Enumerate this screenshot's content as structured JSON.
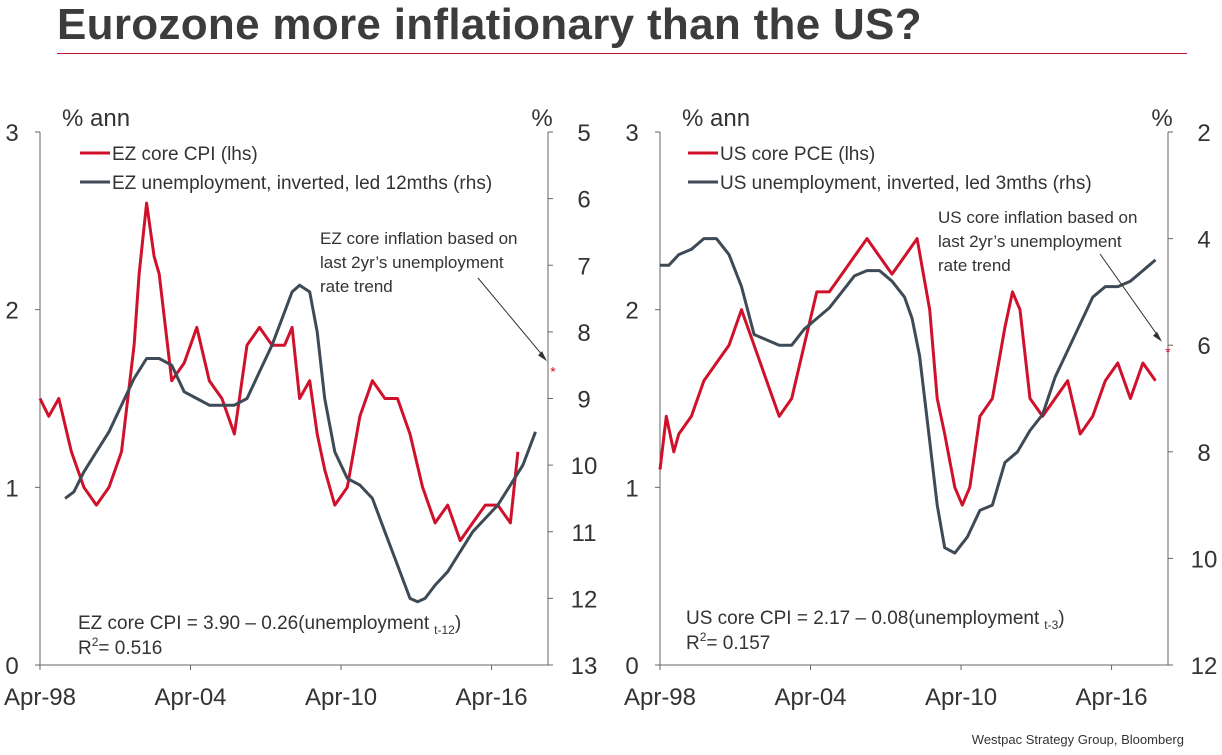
{
  "title": "Eurozone more inflationary than the US?",
  "source": "Westpac Strategy Group, Bloomberg",
  "colors": {
    "red": "#d0112b",
    "slate": "#3e4a55",
    "axis": "#666666",
    "title_rule": "#c8102e"
  },
  "chart_data": [
    {
      "type": "line",
      "ylabel_left": "% ann",
      "ylabel_right": "%",
      "xlim": [
        1998.25,
        2018.5
      ],
      "ylim_left": [
        0,
        3
      ],
      "ylim_right_inverted": [
        5,
        13
      ],
      "yticks_left": [
        0,
        1,
        2,
        3
      ],
      "yticks_right": [
        5,
        6,
        7,
        8,
        9,
        10,
        11,
        12,
        13
      ],
      "xticks": [
        {
          "x": 1998.25,
          "label": "Apr-98"
        },
        {
          "x": 2004.25,
          "label": "Apr-04"
        },
        {
          "x": 2010.25,
          "label": "Apr-10"
        },
        {
          "x": 2016.25,
          "label": "Apr-16"
        }
      ],
      "series": [
        {
          "name": "EZ core CPI (lhs)",
          "axis": "left",
          "color": "red",
          "x": [
            1998.25,
            1998.6,
            1999.0,
            1999.5,
            2000.0,
            2000.5,
            2001.0,
            2001.5,
            2002.0,
            2002.2,
            2002.5,
            2002.8,
            2003.0,
            2003.5,
            2004.0,
            2004.5,
            2005.0,
            2005.5,
            2006.0,
            2006.5,
            2007.0,
            2007.5,
            2008.0,
            2008.3,
            2008.6,
            2009.0,
            2009.3,
            2009.6,
            2010.0,
            2010.5,
            2011.0,
            2011.5,
            2012.0,
            2012.5,
            2013.0,
            2013.5,
            2014.0,
            2014.5,
            2015.0,
            2015.5,
            2016.0,
            2016.5,
            2017.0,
            2017.3
          ],
          "y": [
            1.5,
            1.4,
            1.5,
            1.2,
            1.0,
            0.9,
            1.0,
            1.2,
            1.8,
            2.2,
            2.6,
            2.3,
            2.2,
            1.6,
            1.7,
            1.9,
            1.6,
            1.5,
            1.3,
            1.8,
            1.9,
            1.8,
            1.8,
            1.9,
            1.5,
            1.6,
            1.3,
            1.1,
            0.9,
            1.0,
            1.4,
            1.6,
            1.5,
            1.5,
            1.3,
            1.0,
            0.8,
            0.9,
            0.7,
            0.8,
            0.9,
            0.9,
            0.8,
            1.2
          ]
        },
        {
          "name": "EZ unemployment, inverted, led 12mths (rhs)",
          "axis": "right",
          "color": "slate",
          "x": [
            1999.25,
            1999.6,
            2000.0,
            2000.5,
            2001.0,
            2001.5,
            2002.0,
            2002.5,
            2003.0,
            2003.5,
            2004.0,
            2004.5,
            2005.0,
            2005.5,
            2006.0,
            2006.5,
            2007.0,
            2007.5,
            2008.0,
            2008.3,
            2008.6,
            2009.0,
            2009.3,
            2009.6,
            2010.0,
            2010.5,
            2011.0,
            2011.5,
            2012.0,
            2012.5,
            2013.0,
            2013.3,
            2013.6,
            2014.0,
            2014.5,
            2015.0,
            2015.5,
            2016.0,
            2016.5,
            2017.0,
            2017.5,
            2018.0
          ],
          "y": [
            10.5,
            10.4,
            10.1,
            9.8,
            9.5,
            9.1,
            8.7,
            8.4,
            8.4,
            8.5,
            8.9,
            9.0,
            9.1,
            9.1,
            9.1,
            9.0,
            8.6,
            8.2,
            7.7,
            7.4,
            7.3,
            7.4,
            8.0,
            9.0,
            9.8,
            10.2,
            10.3,
            10.5,
            11.0,
            11.5,
            12.0,
            12.05,
            12.0,
            11.8,
            11.6,
            11.3,
            11.0,
            10.8,
            10.6,
            10.3,
            10.0,
            9.5
          ]
        }
      ],
      "legend": [
        "EZ core CPI (lhs)",
        "EZ unemployment, inverted, led 12mths (rhs)"
      ],
      "annotation": {
        "lines": [
          "EZ core inflation based on",
          "last 2yr’s unemployment",
          "rate trend"
        ],
        "marker": "*",
        "point": {
          "x": 2018.7,
          "y": 1.67
        }
      },
      "regression": {
        "main": "EZ core CPI = 3.90 – 0.26(unemployment",
        "sub": "t-12",
        "close": ")",
        "r2_label": "R",
        "r2_sup": "2",
        "r2_value": "= 0.516"
      }
    },
    {
      "type": "line",
      "ylabel_left": "% ann",
      "ylabel_right": "%",
      "xlim": [
        1998.25,
        2018.5
      ],
      "ylim_left": [
        0,
        3
      ],
      "ylim_right_inverted": [
        2,
        12
      ],
      "yticks_left": [
        0,
        1,
        2,
        3
      ],
      "yticks_right": [
        2,
        4,
        6,
        8,
        10,
        12
      ],
      "xticks": [
        {
          "x": 1998.25,
          "label": "Apr-98"
        },
        {
          "x": 2004.25,
          "label": "Apr-04"
        },
        {
          "x": 2010.25,
          "label": "Apr-10"
        },
        {
          "x": 2016.25,
          "label": "Apr-16"
        }
      ],
      "series": [
        {
          "name": "US core PCE (lhs)",
          "axis": "left",
          "color": "red",
          "x": [
            1998.25,
            1998.5,
            1998.8,
            1999.0,
            1999.5,
            2000.0,
            2000.5,
            2001.0,
            2001.5,
            2002.0,
            2002.5,
            2003.0,
            2003.5,
            2004.0,
            2004.5,
            2005.0,
            2005.5,
            2006.0,
            2006.5,
            2007.0,
            2007.5,
            2008.0,
            2008.5,
            2009.0,
            2009.3,
            2009.6,
            2010.0,
            2010.3,
            2010.6,
            2011.0,
            2011.5,
            2012.0,
            2012.3,
            2012.6,
            2013.0,
            2013.5,
            2014.0,
            2014.5,
            2015.0,
            2015.5,
            2016.0,
            2016.5,
            2017.0,
            2017.5,
            2018.0
          ],
          "y": [
            1.1,
            1.4,
            1.2,
            1.3,
            1.4,
            1.6,
            1.7,
            1.8,
            2.0,
            1.8,
            1.6,
            1.4,
            1.5,
            1.8,
            2.1,
            2.1,
            2.2,
            2.3,
            2.4,
            2.3,
            2.2,
            2.3,
            2.4,
            2.0,
            1.5,
            1.3,
            1.0,
            0.9,
            1.0,
            1.4,
            1.5,
            1.9,
            2.1,
            2.0,
            1.5,
            1.4,
            1.5,
            1.6,
            1.3,
            1.4,
            1.6,
            1.7,
            1.5,
            1.7,
            1.6
          ]
        },
        {
          "name": "US unemployment, inverted, led 3mths (rhs)",
          "axis": "right",
          "color": "slate",
          "x": [
            1998.25,
            1998.6,
            1999.0,
            1999.5,
            2000.0,
            2000.5,
            2001.0,
            2001.5,
            2002.0,
            2002.5,
            2003.0,
            2003.5,
            2004.0,
            2004.5,
            2005.0,
            2005.5,
            2006.0,
            2006.5,
            2007.0,
            2007.5,
            2008.0,
            2008.3,
            2008.6,
            2009.0,
            2009.3,
            2009.6,
            2010.0,
            2010.5,
            2011.0,
            2011.5,
            2012.0,
            2012.5,
            2013.0,
            2013.5,
            2014.0,
            2014.5,
            2015.0,
            2015.5,
            2016.0,
            2016.5,
            2017.0,
            2017.5,
            2018.0
          ],
          "y": [
            4.5,
            4.5,
            4.3,
            4.2,
            4.0,
            4.0,
            4.3,
            4.9,
            5.8,
            5.9,
            6.0,
            6.0,
            5.7,
            5.5,
            5.3,
            5.0,
            4.7,
            4.6,
            4.6,
            4.8,
            5.1,
            5.5,
            6.2,
            7.8,
            9.0,
            9.8,
            9.9,
            9.6,
            9.1,
            9.0,
            8.2,
            8.0,
            7.6,
            7.3,
            6.6,
            6.1,
            5.6,
            5.1,
            4.9,
            4.9,
            4.8,
            4.6,
            4.4
          ]
        }
      ],
      "legend": [
        "US core PCE (lhs)",
        "US unemployment, inverted, led 3mths (rhs)"
      ],
      "annotation": {
        "lines": [
          "US core inflation based on",
          "last 2yr’s unemployment",
          "rate trend"
        ],
        "marker": "*",
        "point": {
          "x": 2018.5,
          "y": 1.78
        }
      },
      "regression": {
        "main": "US core CPI = 2.17 – 0.08(unemployment",
        "sub": "t-3",
        "close": ")",
        "r2_label": "R",
        "r2_sup": "2",
        "r2_value": "= 0.157"
      }
    }
  ]
}
